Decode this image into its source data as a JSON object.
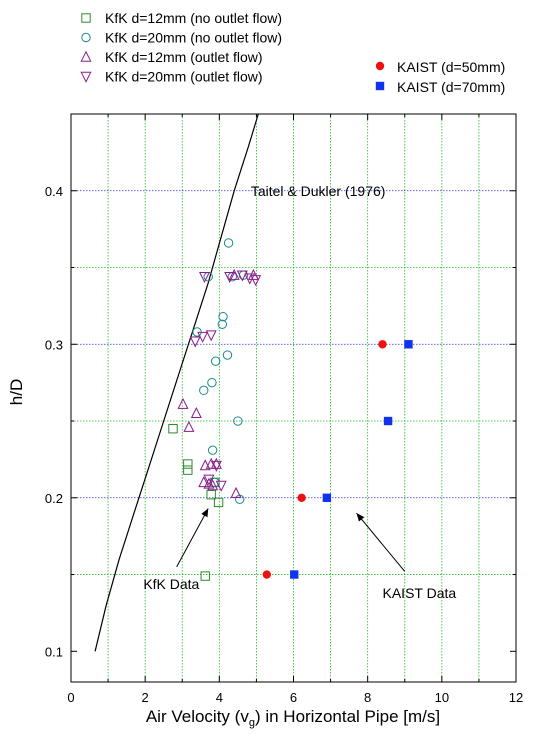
{
  "chart_data": {
    "type": "scatter",
    "xlabel": "Air Velocity (v",
    "xlabel_subscript": "g",
    "xlabel_suffix": ") in Horizontal Pipe [m/s]",
    "ylabel": "h/D",
    "xlim": [
      0,
      12
    ],
    "ylim": [
      0.08,
      0.45
    ],
    "x_ticks": [
      "0",
      "2",
      "4",
      "6",
      "8",
      "10",
      "12"
    ],
    "y_ticks": [
      "0.1",
      "0.2",
      "0.3",
      "0.4"
    ],
    "x_tick_values": [
      0,
      2,
      4,
      6,
      8,
      10,
      12
    ],
    "y_tick_values": [
      0.1,
      0.2,
      0.3,
      0.4
    ],
    "grid": true,
    "legend_placement": "top",
    "series": [
      {
        "name": "KfK d=12mm (no outlet flow)",
        "marker": "open-square",
        "color": "#2e8b2e",
        "points": [
          [
            2.75,
            0.245
          ],
          [
            3.15,
            0.222
          ],
          [
            3.15,
            0.218
          ],
          [
            3.78,
            0.202
          ],
          [
            3.98,
            0.197
          ],
          [
            3.62,
            0.149
          ],
          [
            3.88,
            0.21
          ]
        ]
      },
      {
        "name": "KfK d=20mm (no outlet flow)",
        "marker": "open-circle",
        "color": "#1a8a8a",
        "points": [
          [
            4.25,
            0.366
          ],
          [
            3.7,
            0.344
          ],
          [
            4.35,
            0.344
          ],
          [
            4.65,
            0.345
          ],
          [
            4.1,
            0.318
          ],
          [
            4.08,
            0.313
          ],
          [
            3.4,
            0.308
          ],
          [
            3.9,
            0.289
          ],
          [
            4.22,
            0.293
          ],
          [
            3.58,
            0.27
          ],
          [
            3.8,
            0.275
          ],
          [
            4.5,
            0.25
          ],
          [
            3.82,
            0.231
          ],
          [
            3.88,
            0.21
          ],
          [
            4.55,
            0.199
          ]
        ]
      },
      {
        "name": "KfK d=12mm (outlet flow)",
        "marker": "open-triangle-up",
        "color": "#8b1a8b",
        "points": [
          [
            3.02,
            0.261
          ],
          [
            3.38,
            0.255
          ],
          [
            3.18,
            0.246
          ],
          [
            3.62,
            0.221
          ],
          [
            3.78,
            0.222
          ],
          [
            3.92,
            0.222
          ],
          [
            3.58,
            0.21
          ],
          [
            3.72,
            0.209
          ],
          [
            3.82,
            0.208
          ],
          [
            4.45,
            0.203
          ],
          [
            4.92,
            0.345
          ],
          [
            4.4,
            0.345
          ]
        ]
      },
      {
        "name": "KfK d=20mm (outlet flow)",
        "marker": "open-triangle-down",
        "color": "#8b1a8b",
        "points": [
          [
            3.6,
            0.344
          ],
          [
            4.28,
            0.344
          ],
          [
            4.62,
            0.345
          ],
          [
            4.82,
            0.343
          ],
          [
            4.98,
            0.342
          ],
          [
            3.35,
            0.302
          ],
          [
            3.55,
            0.305
          ],
          [
            3.78,
            0.306
          ],
          [
            3.92,
            0.221
          ],
          [
            4.05,
            0.208
          ],
          [
            3.72,
            0.212
          ]
        ]
      },
      {
        "name": "KAIST (d=50mm)",
        "marker": "filled-circle",
        "color": "#ee1111",
        "points": [
          [
            8.4,
            0.3
          ],
          [
            6.22,
            0.2
          ],
          [
            5.28,
            0.15
          ]
        ]
      },
      {
        "name": "KAIST (d=70mm)",
        "marker": "filled-square",
        "color": "#1133ee",
        "points": [
          [
            9.1,
            0.3
          ],
          [
            8.55,
            0.25
          ],
          [
            6.9,
            0.2
          ],
          [
            6.02,
            0.15
          ]
        ]
      }
    ],
    "curve": {
      "name": "Taitel & Dukler (1976)",
      "points": [
        [
          0.65,
          0.1
        ],
        [
          0.95,
          0.13
        ],
        [
          1.3,
          0.16
        ],
        [
          1.7,
          0.19
        ],
        [
          2.1,
          0.22
        ],
        [
          2.5,
          0.25
        ],
        [
          2.9,
          0.28
        ],
        [
          3.3,
          0.31
        ],
        [
          3.7,
          0.34
        ],
        [
          4.05,
          0.37
        ],
        [
          4.4,
          0.4
        ],
        [
          4.8,
          0.43
        ],
        [
          5.05,
          0.45
        ]
      ]
    },
    "annotations": [
      {
        "text": "Taitel & Dukler (1976)",
        "x": 4.85,
        "y": 0.4
      },
      {
        "text": "KfK Data",
        "x": 1.95,
        "y": 0.144
      },
      {
        "text": "KAIST Data",
        "x": 8.4,
        "y": 0.138
      }
    ]
  }
}
